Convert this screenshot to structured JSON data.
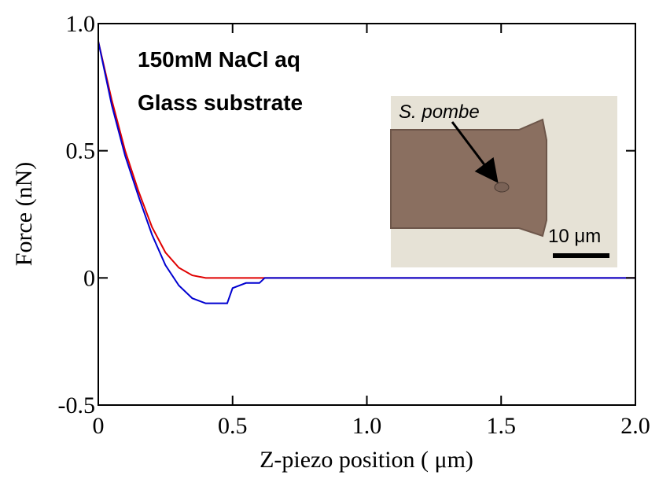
{
  "chart_data": {
    "type": "line",
    "x": [
      0,
      0.05,
      0.1,
      0.15,
      0.2,
      0.25,
      0.3,
      0.35,
      0.4,
      0.45,
      0.48,
      0.5,
      0.55,
      0.6,
      0.62,
      1.0,
      1.5,
      2.0
    ],
    "series": [
      {
        "color": "#e00000",
        "values": [
          0.93,
          0.7,
          0.5,
          0.34,
          0.2,
          0.1,
          0.04,
          0.01,
          0,
          0,
          0,
          0,
          0,
          0,
          0,
          0,
          0,
          0
        ]
      },
      {
        "color": "#0000d0",
        "values": [
          0.93,
          0.68,
          0.48,
          0.32,
          0.17,
          0.05,
          -0.03,
          -0.08,
          -0.1,
          -0.1,
          -0.1,
          -0.04,
          -0.02,
          -0.02,
          0,
          0,
          0,
          0
        ]
      }
    ],
    "xlim": [
      0,
      2
    ],
    "ylim": [
      -0.5,
      1
    ],
    "xticks": [
      0,
      0.5,
      {
        "value": 1,
        "label": "1.0"
      },
      1.5,
      {
        "value": 2,
        "label": "2.0"
      }
    ],
    "yticks": [
      -0.5,
      0,
      0.5,
      {
        "value": 1,
        "label": "1.0"
      }
    ],
    "x_label": "Z-piezo position ( μm)",
    "y_label": "Force (nN)",
    "annotations": [
      "150mM NaCl aq",
      "Glass substrate",
      "S. pombe",
      "10 μm"
    ]
  }
}
